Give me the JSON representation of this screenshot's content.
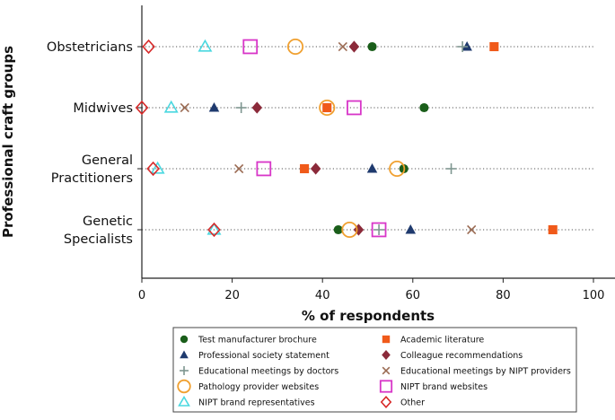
{
  "chart_data": {
    "type": "scatter",
    "title": "",
    "xlabel": "% of respondents",
    "ylabel": "Professional craft groups",
    "xlim": [
      0,
      100
    ],
    "xticks": [
      "0",
      "20",
      "40",
      "60",
      "80",
      "100"
    ],
    "grid": false,
    "legend_position": "bottom",
    "categories": [
      {
        "lines": [
          "Obstetricians"
        ]
      },
      {
        "lines": [
          "Midwives"
        ]
      },
      {
        "lines": [
          "General",
          "Practitioners"
        ]
      },
      {
        "lines": [
          "Genetic",
          "Specialists"
        ]
      }
    ],
    "series": [
      {
        "name": "Test manufacturer brochure",
        "marker": "circle-filled",
        "color": "#1a5e1a",
        "values": [
          51,
          62.5,
          58,
          43.5
        ]
      },
      {
        "name": "Academic literature",
        "marker": "square-filled",
        "color": "#f05a1a",
        "values": [
          78,
          41,
          36,
          91
        ]
      },
      {
        "name": "Professional society statement",
        "marker": "triangle-filled",
        "color": "#1f3a6e",
        "values": [
          72,
          16,
          51,
          59.5
        ]
      },
      {
        "name": "Colleague recommendations",
        "marker": "diamond-filled",
        "color": "#8b2a3a",
        "values": [
          47,
          25.5,
          38.5,
          48
        ]
      },
      {
        "name": "Educational meetings by doctors",
        "marker": "plus",
        "color": "#7e9690",
        "values": [
          71,
          22,
          68.5,
          52.5
        ]
      },
      {
        "name": "Educational meetings by NIPT providers",
        "marker": "x",
        "color": "#9a6a52",
        "values": [
          44.5,
          9.5,
          21.5,
          73
        ]
      },
      {
        "name": "Pathology provider websites",
        "marker": "circle-open",
        "color": "#f0a030",
        "values": [
          34,
          41,
          56.5,
          46
        ]
      },
      {
        "name": "NIPT brand websites",
        "marker": "square-open",
        "color": "#d836c8",
        "values": [
          24,
          47,
          27,
          52.5
        ]
      },
      {
        "name": "NIPT brand representatives",
        "marker": "triangle-open",
        "color": "#4ad8e0",
        "values": [
          14,
          6.5,
          3.5,
          16
        ]
      },
      {
        "name": "Other",
        "marker": "diamond-open",
        "color": "#d82a2a",
        "values": [
          1.5,
          0,
          2.5,
          16
        ]
      }
    ],
    "legend_order": [
      0,
      1,
      2,
      3,
      4,
      5,
      6,
      7,
      8,
      9
    ]
  }
}
